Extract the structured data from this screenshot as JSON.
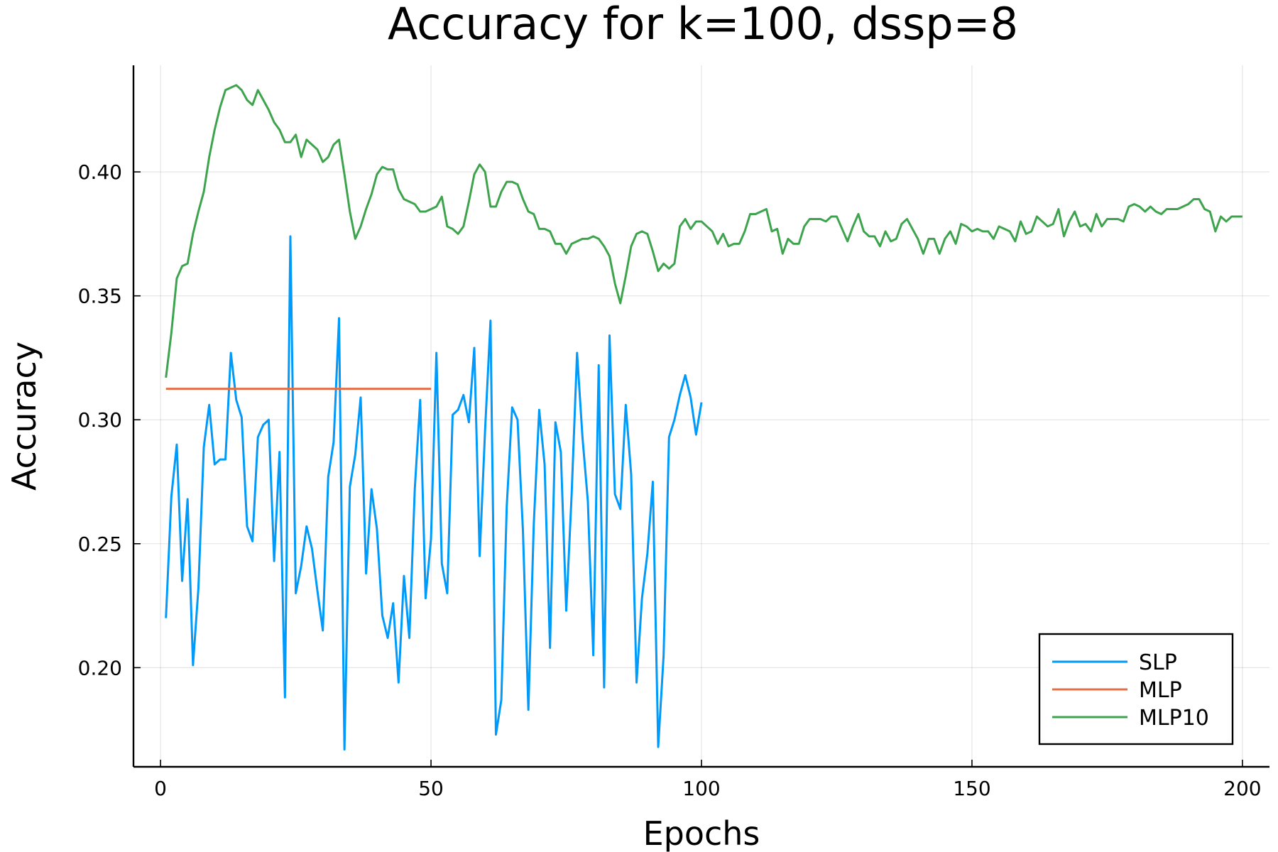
{
  "chart_data": {
    "type": "line",
    "title": "Accuracy for k=100, dssp=8",
    "xlabel": "Epochs",
    "ylabel": "Accuracy",
    "xlim": [
      -5,
      205
    ],
    "ylim": [
      0.16,
      0.443
    ],
    "xticks": [
      0,
      50,
      100,
      150,
      200
    ],
    "xtick_labels": [
      "0",
      "50",
      "100",
      "150",
      "200"
    ],
    "yticks": [
      0.2,
      0.25,
      0.3,
      0.35,
      0.4
    ],
    "ytick_labels": [
      "0.20",
      "0.25",
      "0.30",
      "0.35",
      "0.40"
    ],
    "grid": true,
    "legend_position": "bottom-right",
    "series": [
      {
        "name": "SLP",
        "color": "#009AFA",
        "x": [
          1,
          2,
          3,
          4,
          5,
          6,
          7,
          8,
          9,
          10,
          11,
          12,
          13,
          14,
          15,
          16,
          17,
          18,
          19,
          20,
          21,
          22,
          23,
          24,
          25,
          26,
          27,
          28,
          29,
          30,
          31,
          32,
          33,
          34,
          35,
          36,
          37,
          38,
          39,
          40,
          41,
          42,
          43,
          44,
          45,
          46,
          47,
          48,
          49,
          50,
          51,
          52,
          53,
          54,
          55,
          56,
          57,
          58,
          59,
          60,
          61,
          62,
          63,
          64,
          65,
          66,
          67,
          68,
          69,
          70,
          71,
          72,
          73,
          74,
          75,
          76,
          77,
          78,
          79,
          80,
          81,
          82,
          83,
          84,
          85,
          86,
          87,
          88,
          89,
          90,
          91,
          92,
          93,
          94,
          95,
          96,
          97,
          98,
          99,
          100
        ],
        "y": [
          0.22,
          0.269,
          0.29,
          0.235,
          0.268,
          0.201,
          0.232,
          0.289,
          0.306,
          0.282,
          0.284,
          0.284,
          0.327,
          0.308,
          0.301,
          0.257,
          0.251,
          0.293,
          0.298,
          0.3,
          0.243,
          0.287,
          0.188,
          0.374,
          0.23,
          0.241,
          0.257,
          0.248,
          0.231,
          0.215,
          0.277,
          0.291,
          0.341,
          0.167,
          0.273,
          0.286,
          0.309,
          0.238,
          0.272,
          0.256,
          0.221,
          0.212,
          0.226,
          0.194,
          0.237,
          0.212,
          0.272,
          0.308,
          0.228,
          0.252,
          0.327,
          0.242,
          0.23,
          0.302,
          0.304,
          0.31,
          0.299,
          0.329,
          0.245,
          0.296,
          0.34,
          0.173,
          0.187,
          0.265,
          0.305,
          0.3,
          0.255,
          0.183,
          0.258,
          0.304,
          0.282,
          0.208,
          0.299,
          0.287,
          0.223,
          0.27,
          0.327,
          0.293,
          0.267,
          0.205,
          0.322,
          0.192,
          0.334,
          0.27,
          0.264,
          0.306,
          0.278,
          0.194,
          0.228,
          0.246,
          0.275,
          0.168,
          0.205,
          0.293,
          0.3,
          0.31,
          0.318,
          0.309,
          0.294,
          0.307
        ]
      },
      {
        "name": "MLP",
        "color": "#E26F46",
        "x": [
          1,
          50
        ],
        "y": [
          0.3125,
          0.3125
        ]
      },
      {
        "name": "MLP10",
        "color": "#3DA44D",
        "x": [
          1,
          2,
          3,
          4,
          5,
          6,
          7,
          8,
          9,
          10,
          11,
          12,
          13,
          14,
          15,
          16,
          17,
          18,
          19,
          20,
          21,
          22,
          23,
          24,
          25,
          26,
          27,
          28,
          29,
          30,
          31,
          32,
          33,
          34,
          35,
          36,
          37,
          38,
          39,
          40,
          41,
          42,
          43,
          44,
          45,
          46,
          47,
          48,
          49,
          50,
          51,
          52,
          53,
          54,
          55,
          56,
          57,
          58,
          59,
          60,
          61,
          62,
          63,
          64,
          65,
          66,
          67,
          68,
          69,
          70,
          71,
          72,
          73,
          74,
          75,
          76,
          77,
          78,
          79,
          80,
          81,
          82,
          83,
          84,
          85,
          86,
          87,
          88,
          89,
          90,
          91,
          92,
          93,
          94,
          95,
          96,
          97,
          98,
          99,
          100,
          101,
          102,
          103,
          104,
          105,
          106,
          107,
          108,
          109,
          110,
          111,
          112,
          113,
          114,
          115,
          116,
          117,
          118,
          119,
          120,
          121,
          122,
          123,
          124,
          125,
          126,
          127,
          128,
          129,
          130,
          131,
          132,
          133,
          134,
          135,
          136,
          137,
          138,
          139,
          140,
          141,
          142,
          143,
          144,
          145,
          146,
          147,
          148,
          149,
          150,
          151,
          152,
          153,
          154,
          155,
          156,
          157,
          158,
          159,
          160,
          161,
          162,
          163,
          164,
          165,
          166,
          167,
          168,
          169,
          170,
          171,
          172,
          173,
          174,
          175,
          176,
          177,
          178,
          179,
          180,
          181,
          182,
          183,
          184,
          185,
          186,
          187,
          188,
          189,
          190,
          191,
          192,
          193,
          194,
          195,
          196,
          197,
          198,
          199,
          200
        ],
        "y": [
          0.317,
          0.335,
          0.357,
          0.362,
          0.363,
          0.375,
          0.384,
          0.392,
          0.406,
          0.417,
          0.426,
          0.433,
          0.434,
          0.435,
          0.433,
          0.429,
          0.427,
          0.433,
          0.429,
          0.425,
          0.42,
          0.417,
          0.412,
          0.412,
          0.415,
          0.406,
          0.413,
          0.411,
          0.409,
          0.404,
          0.406,
          0.411,
          0.413,
          0.399,
          0.384,
          0.373,
          0.378,
          0.385,
          0.391,
          0.399,
          0.402,
          0.401,
          0.401,
          0.393,
          0.389,
          0.388,
          0.387,
          0.384,
          0.384,
          0.385,
          0.386,
          0.39,
          0.378,
          0.377,
          0.375,
          0.378,
          0.388,
          0.399,
          0.403,
          0.4,
          0.386,
          0.386,
          0.392,
          0.396,
          0.396,
          0.395,
          0.389,
          0.384,
          0.383,
          0.377,
          0.377,
          0.376,
          0.371,
          0.371,
          0.367,
          0.371,
          0.372,
          0.373,
          0.373,
          0.374,
          0.373,
          0.37,
          0.366,
          0.355,
          0.347,
          0.358,
          0.37,
          0.375,
          0.376,
          0.375,
          0.368,
          0.36,
          0.363,
          0.361,
          0.363,
          0.378,
          0.381,
          0.377,
          0.38,
          0.38,
          0.378,
          0.376,
          0.371,
          0.375,
          0.37,
          0.371,
          0.371,
          0.376,
          0.383,
          0.383,
          0.384,
          0.385,
          0.376,
          0.377,
          0.367,
          0.373,
          0.371,
          0.371,
          0.378,
          0.381,
          0.381,
          0.381,
          0.38,
          0.382,
          0.382,
          0.377,
          0.372,
          0.378,
          0.383,
          0.376,
          0.374,
          0.374,
          0.37,
          0.376,
          0.372,
          0.373,
          0.379,
          0.381,
          0.377,
          0.373,
          0.367,
          0.373,
          0.373,
          0.367,
          0.373,
          0.376,
          0.371,
          0.379,
          0.378,
          0.376,
          0.377,
          0.376,
          0.376,
          0.373,
          0.378,
          0.377,
          0.376,
          0.372,
          0.38,
          0.375,
          0.376,
          0.382,
          0.38,
          0.378,
          0.379,
          0.385,
          0.374,
          0.38,
          0.384,
          0.378,
          0.379,
          0.376,
          0.383,
          0.378,
          0.381,
          0.381,
          0.381,
          0.38,
          0.386,
          0.387,
          0.386,
          0.384,
          0.386,
          0.384,
          0.383,
          0.385,
          0.385,
          0.385,
          0.386,
          0.387,
          0.389,
          0.389,
          0.385,
          0.384,
          0.376,
          0.382,
          0.38,
          0.382,
          0.382,
          0.382
        ]
      }
    ]
  }
}
